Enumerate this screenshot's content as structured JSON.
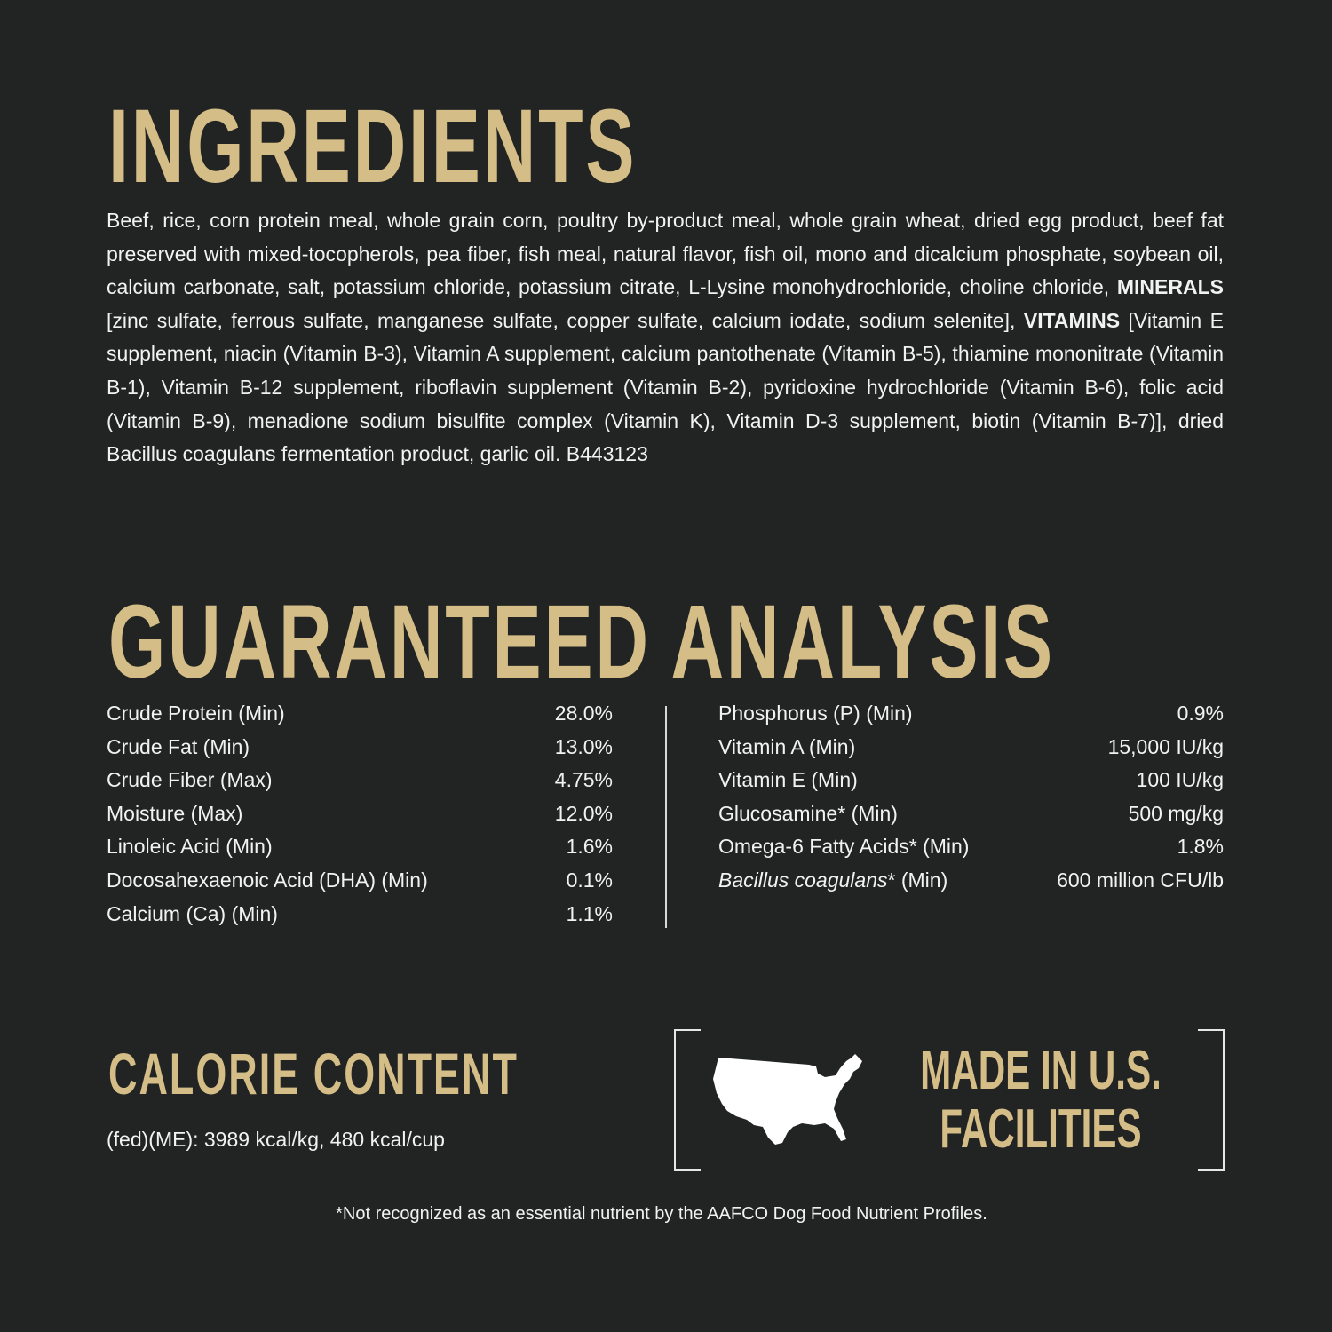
{
  "colors": {
    "background": "#222423",
    "accent": "#d4bd87",
    "text": "#f2f2f2"
  },
  "ingredients": {
    "title": "INGREDIENTS",
    "part1": "Beef, rice, corn protein meal, whole grain corn, poultry by-product meal, whole grain wheat, dried egg product, beef fat preserved with mixed-tocopherols, pea fiber, fish meal, natural flavor, fish oil, mono and dicalcium phosphate, soybean oil, calcium carbonate, salt, potassium chloride, potassium citrate, L-Lysine monohydrochloride, choline chloride, ",
    "minerals_label": "MINERALS",
    "part2": " [zinc sulfate, ferrous sulfate, manganese sulfate, copper sulfate, calcium iodate, sodium selenite], ",
    "vitamins_label": "VITAMINS",
    "part3": " [Vitamin E supplement, niacin (Vitamin B-3), Vitamin A supplement, calcium pantothenate (Vitamin B-5), thiamine mononitrate (Vitamin B-1), Vitamin B-12 supplement, riboflavin supplement (Vitamin B-2), pyridoxine hydrochloride (Vitamin B-6), folic acid (Vitamin B-9), menadione sodium bisulfite complex (Vitamin K), Vitamin D-3 supplement, biotin (Vitamin B-7)], dried Bacillus coagulans fermentation product, garlic oil.   B443123"
  },
  "analysis": {
    "title": "GUARANTEED ANALYSIS",
    "left": [
      {
        "label": "Crude Protein (Min)",
        "value": "28.0%"
      },
      {
        "label": "Crude Fat (Min)",
        "value": "13.0%"
      },
      {
        "label": "Crude Fiber (Max)",
        "value": "4.75%"
      },
      {
        "label": "Moisture (Max)",
        "value": "12.0%"
      },
      {
        "label": "Linoleic Acid (Min)",
        "value": "1.6%"
      },
      {
        "label": "Docosahexaenoic Acid (DHA) (Min)",
        "value": "0.1%"
      },
      {
        "label": "Calcium (Ca) (Min)",
        "value": "1.1%"
      }
    ],
    "right": [
      {
        "label": "Phosphorus (P) (Min)",
        "value": "0.9%"
      },
      {
        "label": "Vitamin A (Min)",
        "value": "15,000 IU/kg"
      },
      {
        "label": "Vitamin E (Min)",
        "value": "100 IU/kg"
      },
      {
        "label": "Glucosamine* (Min)",
        "value": "500 mg/kg"
      },
      {
        "label": "Omega-6 Fatty Acids* (Min)",
        "value": "1.8%"
      }
    ],
    "last": {
      "italic": "Bacillus coagulans",
      "label": "* (Min)",
      "value": "600 million CFU/lb"
    }
  },
  "calorie": {
    "title": "CALORIE CONTENT",
    "text": "(fed)(ME): 3989 kcal/kg, 480 kcal/cup"
  },
  "badge": {
    "icon": "usa-map-icon",
    "line1": "MADE IN U.S.",
    "line2": "FACILITIES"
  },
  "footnote": "*Not recognized as an essential nutrient by the AAFCO Dog Food Nutrient Profiles."
}
